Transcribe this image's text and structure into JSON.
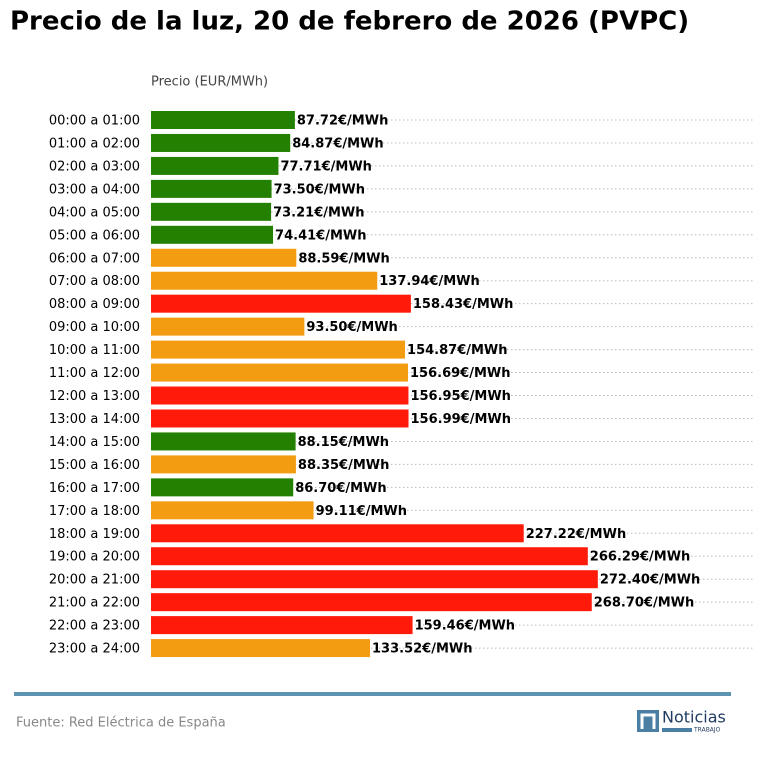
{
  "chart_data": {
    "type": "bar",
    "orientation": "horizontal",
    "title": "Precio de la luz, 20 de febrero de 2026 (PVPC)",
    "x_label": "Precio (EUR/MWh)",
    "categories": [
      "00:00 a 01:00",
      "01:00 a 02:00",
      "02:00 a 03:00",
      "03:00 a 04:00",
      "04:00 a 05:00",
      "05:00 a 06:00",
      "06:00 a 07:00",
      "07:00 a 08:00",
      "08:00 a 09:00",
      "09:00 a 10:00",
      "10:00 a 11:00",
      "11:00 a 12:00",
      "12:00 a 13:00",
      "13:00 a 14:00",
      "14:00 a 15:00",
      "15:00 a 16:00",
      "16:00 a 17:00",
      "17:00 a 18:00",
      "18:00 a 19:00",
      "19:00 a 20:00",
      "20:00 a 21:00",
      "21:00 a 22:00",
      "22:00 a 23:00",
      "23:00 a 24:00"
    ],
    "values": [
      87.72,
      84.87,
      77.71,
      73.5,
      73.21,
      74.41,
      88.59,
      137.94,
      158.43,
      93.5,
      154.87,
      156.69,
      156.95,
      156.99,
      88.15,
      88.35,
      86.7,
      99.11,
      227.22,
      266.29,
      272.4,
      268.7,
      159.46,
      133.52
    ],
    "value_labels": [
      "87.72€/MWh",
      "84.87€/MWh",
      "77.71€/MWh",
      "73.50€/MWh",
      "73.21€/MWh",
      "74.41€/MWh",
      "88.59€/MWh",
      "137.94€/MWh",
      "158.43€/MWh",
      "93.50€/MWh",
      "154.87€/MWh",
      "156.69€/MWh",
      "156.95€/MWh",
      "156.99€/MWh",
      "88.15€/MWh",
      "88.35€/MWh",
      "86.70€/MWh",
      "99.11€/MWh",
      "227.22€/MWh",
      "266.29€/MWh",
      "272.40€/MWh",
      "268.70€/MWh",
      "159.46€/MWh",
      "133.52€/MWh"
    ],
    "colors": [
      "#238000",
      "#238000",
      "#238000",
      "#238000",
      "#238000",
      "#238000",
      "#f39c12",
      "#f39c12",
      "#ff1a0a",
      "#f39c12",
      "#f39c12",
      "#f39c12",
      "#ff1a0a",
      "#ff1a0a",
      "#238000",
      "#f39c12",
      "#238000",
      "#f39c12",
      "#ff1a0a",
      "#ff1a0a",
      "#ff1a0a",
      "#ff1a0a",
      "#ff1a0a",
      "#f39c12"
    ],
    "xlim": [
      0,
      367
    ]
  },
  "footer": {
    "source": "Fuente: Red Eléctrica de España",
    "logo_name": "Noticias",
    "logo_sub": "TRABAJO"
  }
}
